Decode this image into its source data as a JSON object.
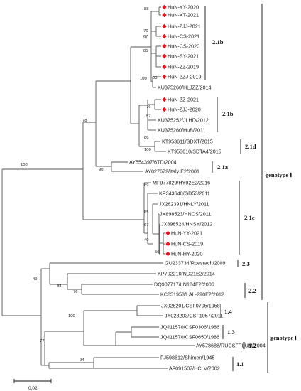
{
  "leaves": [
    {
      "id": "l1",
      "label": "HuN-YY-2020",
      "marked": true
    },
    {
      "id": "l2",
      "label": "HuN-XT-2021",
      "marked": true
    },
    {
      "id": "l3",
      "label": "HuN-ZJJ-2021",
      "marked": true
    },
    {
      "id": "l4",
      "label": "HuN-CS-2021",
      "marked": true
    },
    {
      "id": "l5",
      "label": "HuN-CS-2020",
      "marked": true
    },
    {
      "id": "l6",
      "label": "HuN-SY-2021",
      "marked": true
    },
    {
      "id": "l7",
      "label": "HuN-ZZ-2019",
      "marked": true
    },
    {
      "id": "l8",
      "label": "HuN-ZZJ-2019",
      "marked": true
    },
    {
      "id": "l9",
      "label": "KU375260/HLJZZ/2014",
      "marked": false
    },
    {
      "id": "l10",
      "label": "HuN-ZZ-2021",
      "marked": true
    },
    {
      "id": "l11",
      "label": "HuN-ZJJ-2020",
      "marked": true
    },
    {
      "id": "l12",
      "label": "KU375252/JLHD/2012",
      "marked": false
    },
    {
      "id": "l13",
      "label": "KU375260/HuB/2011",
      "marked": false
    },
    {
      "id": "l14",
      "label": "KT953611/SDXT/2015",
      "marked": false
    },
    {
      "id": "l15",
      "label": "KT953610/SDTA4/2015",
      "marked": false
    },
    {
      "id": "l16",
      "label": "AY554397/6TD/2004",
      "marked": false
    },
    {
      "id": "l17",
      "label": "AY027672/Italy E2/2001",
      "marked": false
    },
    {
      "id": "l18",
      "label": "MF977829/HY92E2/2016",
      "marked": false
    },
    {
      "id": "l19",
      "label": "KP343640/GD53/2011",
      "marked": false
    },
    {
      "id": "l20",
      "label": "JX262391/HNLY/2011",
      "marked": false
    },
    {
      "id": "l21",
      "label": "JX898523/HNCS/2011",
      "marked": false
    },
    {
      "id": "l22",
      "label": "JX898524/HNSY/2012",
      "marked": false
    },
    {
      "id": "l23",
      "label": "HuN-YY-2021",
      "marked": true
    },
    {
      "id": "l24",
      "label": "HuN-CS-2019",
      "marked": true
    },
    {
      "id": "l25",
      "label": "HuN-HY-2020",
      "marked": true
    },
    {
      "id": "l26",
      "label": "GU233734/Roesrach/2009",
      "marked": false
    },
    {
      "id": "l27",
      "label": "KP702210/ND21E2/2014",
      "marked": false
    },
    {
      "id": "l28",
      "label": "DQ907717/LN184E2/2006",
      "marked": false
    },
    {
      "id": "l29",
      "label": "KC851953/LAL-290E2/2012",
      "marked": false
    },
    {
      "id": "l30",
      "label": "JX028201/CSF0705/1958",
      "marked": false
    },
    {
      "id": "l31",
      "label": "JX028203/CSF1057/2011",
      "marked": false
    },
    {
      "id": "l32",
      "label": "JQ411570/CSF0306/1986",
      "marked": false
    },
    {
      "id": "l33",
      "label": "JQ411570/CSF0650/1986",
      "marked": false
    },
    {
      "id": "l34",
      "label": "AY578688/RUCSFPLUM/2004",
      "marked": false
    },
    {
      "id": "l35",
      "label": "FJ598612/Shimen/1945",
      "marked": false
    },
    {
      "id": "l36",
      "label": "AF091507/HCLV/2002",
      "marked": false
    }
  ],
  "bootstrap_values": [
    "88",
    "76",
    "67",
    "85",
    "100",
    "53",
    "76",
    "57",
    "86",
    "100",
    "78",
    "100",
    "90",
    "89",
    "85",
    "67",
    "40",
    "50",
    "49",
    "98",
    "76",
    "100",
    "77",
    "94"
  ],
  "subgenotype_labels": {
    "g21b_top": "2.1b",
    "g21b_bottom": "2.1b",
    "g21d": "2.1d",
    "g21a": "2.1a",
    "g21c": "2.1c",
    "g23": "2.3",
    "g22": "2.2",
    "g14": "1.4",
    "g13": "1.3",
    "g12": "1.2",
    "g11": "1.1"
  },
  "genotype_labels": {
    "genotype_2": "genotype Ⅱ",
    "genotype_1": "genotype Ⅰ"
  },
  "scale_bar": {
    "label": "0.02",
    "value": 0.02
  },
  "marker_color": "#e8141b"
}
